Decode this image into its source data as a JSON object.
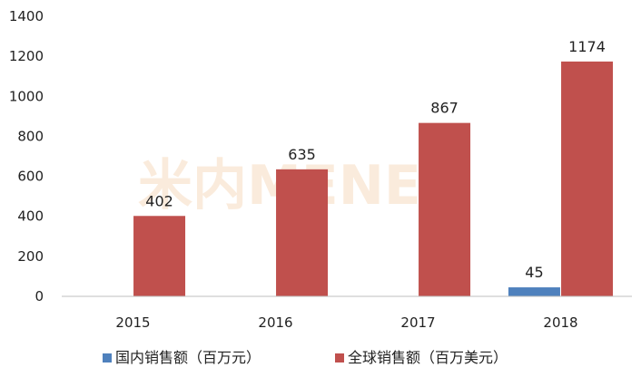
{
  "chart_data": {
    "type": "bar",
    "title": "",
    "xlabel": "",
    "ylabel": "",
    "categories": [
      "2015",
      "2016",
      "2017",
      "2018"
    ],
    "ylim": [
      0,
      1400
    ],
    "yticks": [
      0,
      200,
      400,
      600,
      800,
      1000,
      1200,
      1400
    ],
    "series": [
      {
        "name": "国内销售额（百万元）",
        "color": "#4f81bd",
        "values": [
          null,
          null,
          null,
          45
        ]
      },
      {
        "name": "全球销售额（百万美元）",
        "color": "#c0504d",
        "values": [
          402,
          635,
          867,
          1174
        ]
      }
    ],
    "legend_position": "bottom-left",
    "grid": false
  },
  "watermark": {
    "text": "米内MENET"
  }
}
